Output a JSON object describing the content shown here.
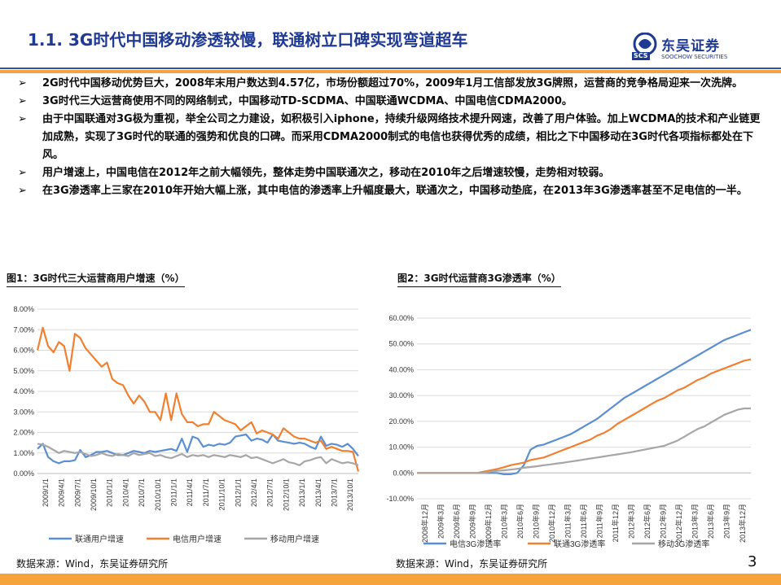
{
  "header": {
    "title": "1.1. 3G时代中国移动渗透较慢，联通树立口碑实现弯道超车",
    "logo_cn": "东吴证券",
    "logo_en": "SOOCHOW SECURITIES",
    "logo_mark": "SCS"
  },
  "bullets": [
    "2G时代中国移动优势巨大，2008年末用户数达到4.57亿，市场份额超过70%，2009年1月工信部发放3G牌照，运营商的竞争格局迎来一次洗牌。",
    "3G时代三大运营商使用不同的网络制式，中国移动TD-SCDMA、中国联通WCDMA、中国电信CDMA2000。",
    "由于中国联通对3G极为重视，举全公司之力建设，如积极引入iphone，持续升级网络技术提升网速，改善了用户体验。加上WCDMA的技术和产业链更加成熟，实现了3G时代的联通的强势和优良的口碑。而采用CDMA2000制式的电信也获得优秀的成绩，相比之下中国移动在3G时代各项指标都处在下风。",
    "用户增速上，中国电信在2012年之前大幅领先，整体走势中国联通次之，移动在2010年之后增速较慢，走势相对较弱。",
    "在3G渗透率上三家在2010年开始大幅上涨，其中电信的渗透率上升幅度最大，联通次之，中国移动垫底，在2013年3G渗透率甚至不足电信的一半。"
  ],
  "bullet_arrow": "➢",
  "figures": {
    "fig1_title": "图1：3G时代三大运营商用户增速（%）",
    "fig2_title": "图2：3G时代运营商3G渗透率（%）",
    "source1": "数据来源：Wind，东吴证券研究所",
    "source2": "数据来源：Wind，东吴证券研究所"
  },
  "page_number": "3",
  "colors": {
    "title": "#1f3a93",
    "rule_blue": "#2b53a8",
    "accent_orange": "#f5a33a",
    "series_blue": "#5b8fd1",
    "series_orange": "#f08030",
    "series_gray": "#a6a6a6"
  },
  "chart_data": [
    {
      "type": "line",
      "ylim": [
        0,
        8
      ],
      "yticks": [
        "0.00%",
        "1.00%",
        "2.00%",
        "3.00%",
        "4.00%",
        "5.00%",
        "6.00%",
        "7.00%",
        "8.00%"
      ],
      "xticks": [
        "2009/1/1",
        "2009/4/1",
        "2009/7/1",
        "2009/10/1",
        "2010/1/1",
        "2010/4/1",
        "2010/7/1",
        "2010/10/1",
        "2011/1/1",
        "2011/4/1",
        "2011/7/1",
        "2011/10/1",
        "2012/1/1",
        "2012/4/1",
        "2012/7/1",
        "2012/10/1",
        "2013/1/1",
        "2013/4/1",
        "2013/7/1",
        "2013/10/1"
      ],
      "grid": true,
      "legend": "bottom",
      "series": [
        {
          "name": "联通用户增速",
          "values": [
            1.2,
            1.45,
            0.8,
            0.6,
            0.5,
            0.6,
            0.6,
            0.65,
            1.15,
            0.8,
            0.9,
            1.05,
            1.05,
            1.1,
            1.0,
            0.9,
            0.9,
            1.0,
            1.1,
            1.05,
            1.0,
            1.1,
            1.05,
            1.1,
            1.15,
            1.2,
            1.1,
            1.7,
            1.05,
            1.8,
            1.7,
            1.3,
            1.4,
            1.35,
            1.45,
            1.4,
            1.5,
            1.8,
            1.85,
            1.9,
            1.6,
            1.7,
            1.65,
            1.5,
            1.9,
            1.6,
            1.55,
            1.5,
            1.45,
            1.5,
            1.45,
            1.3,
            1.2,
            1.8,
            1.35,
            1.45,
            1.4,
            1.3,
            1.45,
            1.2,
            0.85
          ]
        },
        {
          "name": "电信用户增速",
          "values": [
            6.0,
            7.1,
            6.2,
            5.9,
            6.4,
            6.2,
            5.0,
            6.8,
            6.6,
            6.1,
            5.8,
            5.5,
            5.2,
            5.4,
            4.6,
            4.4,
            4.3,
            3.8,
            3.4,
            3.8,
            3.5,
            3.0,
            3.0,
            2.6,
            3.9,
            2.6,
            3.9,
            2.9,
            2.5,
            2.5,
            2.3,
            2.4,
            2.4,
            3.0,
            2.8,
            2.6,
            2.5,
            2.4,
            2.1,
            2.3,
            2.5,
            1.95,
            2.1,
            2.0,
            1.9,
            1.7,
            2.2,
            2.0,
            1.8,
            1.7,
            1.7,
            1.6,
            1.5,
            1.6,
            1.2,
            1.3,
            1.2,
            1.1,
            1.1,
            1.05,
            0.1
          ]
        },
        {
          "name": "移动用户增速",
          "values": [
            1.45,
            1.4,
            1.3,
            1.15,
            1.0,
            1.1,
            1.05,
            1.0,
            1.05,
            0.95,
            0.85,
            0.9,
            1.0,
            0.9,
            0.85,
            0.95,
            0.9,
            0.85,
            1.0,
            0.9,
            0.95,
            1.0,
            0.85,
            0.9,
            0.8,
            0.75,
            0.85,
            0.95,
            0.8,
            0.9,
            0.85,
            0.9,
            0.8,
            0.9,
            0.85,
            0.8,
            0.9,
            0.85,
            0.8,
            0.9,
            0.75,
            0.8,
            0.7,
            0.6,
            0.5,
            0.6,
            0.7,
            0.55,
            0.5,
            0.4,
            0.6,
            0.65,
            0.75,
            0.8,
            0.5,
            0.7,
            0.6,
            0.5,
            0.55,
            0.5,
            0.4
          ]
        }
      ]
    },
    {
      "type": "line",
      "ylim": [
        -10,
        60
      ],
      "yticks": [
        "-10.00%",
        "0.00%",
        "10.00%",
        "20.00%",
        "30.00%",
        "40.00%",
        "50.00%",
        "60.00%"
      ],
      "xticks": [
        "2008年12月",
        "2009年3月",
        "2009年6月",
        "2009年9月",
        "2009年12月",
        "2010年3月",
        "2010年6月",
        "2010年9月",
        "2010年12月",
        "2011年3月",
        "2011年6月",
        "2011年9月",
        "2011年12月",
        "2012年3月",
        "2012年6月",
        "2012年9月",
        "2012年12月",
        "2013年3月",
        "2013年6月",
        "2013年9月",
        "2013年12月"
      ],
      "grid": true,
      "legend": "bottom",
      "series": [
        {
          "name": "电信3G渗透率",
          "values": [
            0,
            0,
            0,
            0,
            0,
            0,
            0,
            0,
            0,
            0,
            0,
            0,
            0,
            -0.5,
            -0.5,
            0,
            3,
            9,
            10.5,
            11,
            12,
            13,
            14,
            15,
            16.5,
            18,
            19.5,
            21,
            23,
            25,
            27,
            29,
            30.5,
            32,
            33.5,
            35,
            36.5,
            38,
            39.5,
            41,
            42.5,
            44,
            45.5,
            47,
            48.5,
            50,
            51.5,
            52.5,
            53.5,
            54.5,
            55.5
          ]
        },
        {
          "name": "联通3G渗透率",
          "values": [
            0,
            0,
            0,
            0,
            0,
            0,
            0,
            0,
            0,
            0,
            0.5,
            1,
            1.5,
            2.2,
            3,
            3.5,
            4,
            5,
            5.5,
            6,
            7,
            8,
            9,
            10,
            11,
            12,
            13,
            14.5,
            15.5,
            17,
            19,
            20.5,
            22,
            23.5,
            25,
            26.5,
            28,
            29,
            30.5,
            32,
            33,
            34.5,
            36,
            37,
            38.5,
            39.5,
            40.5,
            41.5,
            42.5,
            43.5,
            44
          ]
        },
        {
          "name": "移动3G渗透率",
          "values": [
            0,
            0,
            0,
            0,
            0,
            0,
            0,
            0,
            0,
            0,
            0,
            0.5,
            0.8,
            1,
            1.3,
            1.6,
            2,
            2.3,
            2.6,
            3,
            3.3,
            3.7,
            4,
            4.4,
            4.8,
            5.2,
            5.6,
            6,
            6.4,
            6.8,
            7.2,
            7.6,
            8,
            8.5,
            9,
            9.5,
            10,
            10.5,
            11.5,
            12.5,
            14,
            15.5,
            17,
            18,
            19.5,
            21,
            22.5,
            23.5,
            24.5,
            25,
            25
          ]
        }
      ]
    }
  ]
}
